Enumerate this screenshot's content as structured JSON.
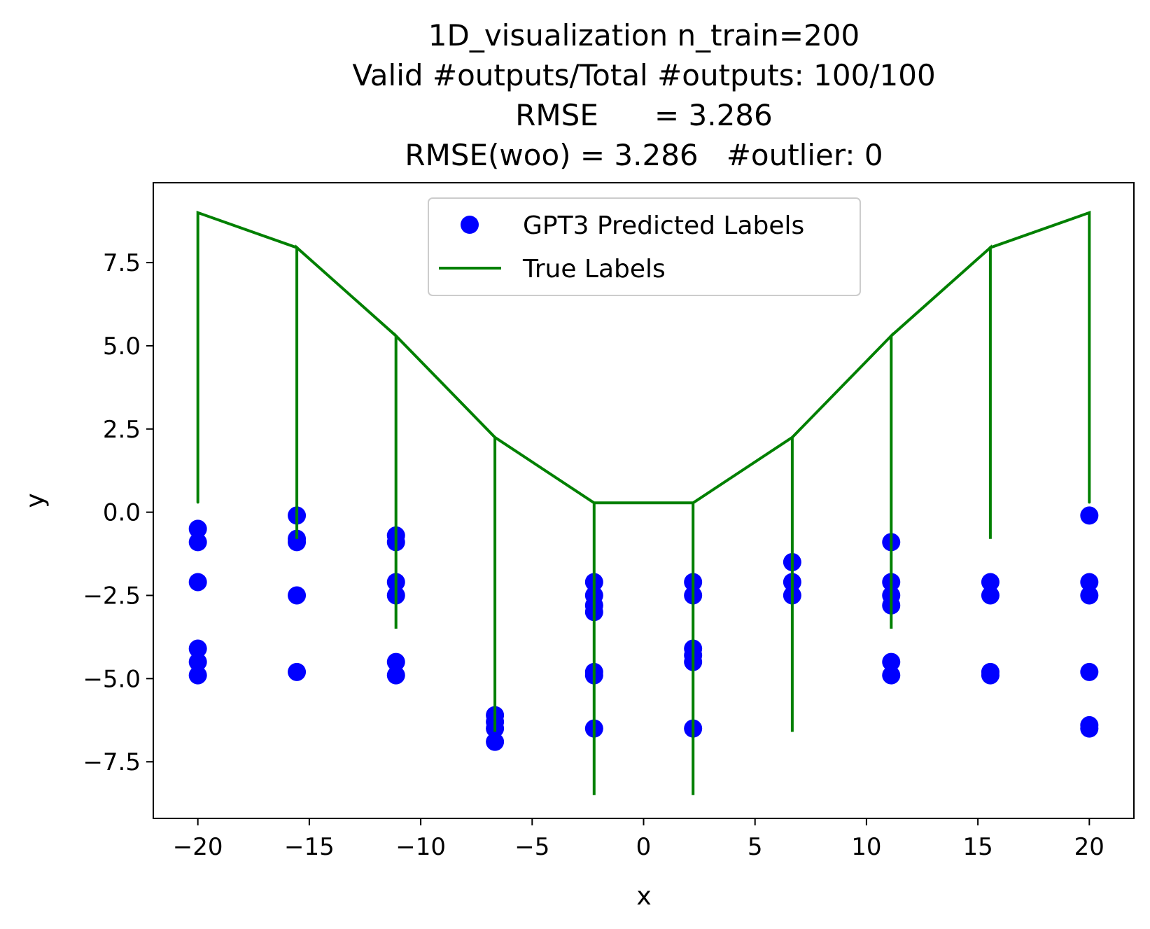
{
  "chart_data": {
    "type": "scatter",
    "title": [
      "1D_visualization  n_train=200",
      "Valid #outputs/Total #outputs: 100/100",
      "RMSE      = 3.286",
      "RMSE(woo) = 3.286   #outlier: 0"
    ],
    "xlabel": "x",
    "ylabel": "y",
    "xlim": [
      -22,
      22
    ],
    "ylim": [
      -9.2,
      9.9
    ],
    "xticks": [
      -20,
      -15,
      -10,
      -5,
      0,
      5,
      10,
      15,
      20
    ],
    "xtick_labels": [
      "−20",
      "−15",
      "−10",
      "−5",
      "0",
      "5",
      "10",
      "15",
      "20"
    ],
    "yticks": [
      7.5,
      5.0,
      2.5,
      0.0,
      -2.5,
      -5.0,
      -7.5
    ],
    "ytick_labels": [
      "7.5",
      "5.0",
      "2.5",
      "0.0",
      "−2.5",
      "−5.0",
      "−7.5"
    ],
    "grid": false,
    "legend": {
      "placement": "upper-center",
      "entries": [
        "GPT3 Predicted Labels",
        "True Labels"
      ]
    },
    "colors": {
      "predicted": "#0000ff",
      "true": "#008000"
    },
    "series": [
      {
        "name": "GPT3 Predicted Labels",
        "kind": "scatter",
        "points": [
          [
            -20,
            -0.5
          ],
          [
            -20,
            -0.9
          ],
          [
            -20,
            -2.1
          ],
          [
            -20,
            -4.1
          ],
          [
            -20,
            -4.5
          ],
          [
            -20,
            -4.9
          ],
          [
            -15.56,
            -0.1
          ],
          [
            -15.56,
            -0.8
          ],
          [
            -15.56,
            -0.9
          ],
          [
            -15.56,
            -2.5
          ],
          [
            -15.56,
            -4.8
          ],
          [
            -11.11,
            -0.7
          ],
          [
            -11.11,
            -0.9
          ],
          [
            -11.11,
            -2.1
          ],
          [
            -11.11,
            -2.5
          ],
          [
            -11.11,
            -4.5
          ],
          [
            -11.11,
            -4.9
          ],
          [
            -6.67,
            -6.1
          ],
          [
            -6.67,
            -6.3
          ],
          [
            -6.67,
            -6.5
          ],
          [
            -6.67,
            -6.9
          ],
          [
            -2.22,
            -2.1
          ],
          [
            -2.22,
            -2.5
          ],
          [
            -2.22,
            -2.8
          ],
          [
            -2.22,
            -3.0
          ],
          [
            -2.22,
            -4.8
          ],
          [
            -2.22,
            -4.9
          ],
          [
            -2.22,
            -6.5
          ],
          [
            2.22,
            -2.1
          ],
          [
            2.22,
            -2.5
          ],
          [
            2.22,
            -4.1
          ],
          [
            2.22,
            -4.3
          ],
          [
            2.22,
            -4.5
          ],
          [
            2.22,
            -6.5
          ],
          [
            6.67,
            -1.5
          ],
          [
            6.67,
            -2.1
          ],
          [
            6.67,
            -2.5
          ],
          [
            11.11,
            -0.9
          ],
          [
            11.11,
            -2.1
          ],
          [
            11.11,
            -2.5
          ],
          [
            11.11,
            -2.8
          ],
          [
            11.11,
            -4.5
          ],
          [
            11.11,
            -4.9
          ],
          [
            15.56,
            -2.1
          ],
          [
            15.56,
            -2.5
          ],
          [
            15.56,
            -4.8
          ],
          [
            15.56,
            -4.9
          ],
          [
            20,
            -0.1
          ],
          [
            20,
            -2.1
          ],
          [
            20,
            -2.5
          ],
          [
            20,
            -4.8
          ],
          [
            20,
            -6.4
          ],
          [
            20,
            -6.5
          ]
        ]
      },
      {
        "name": "True Labels",
        "kind": "line",
        "points": [
          [
            -20,
            0.3
          ],
          [
            -20,
            9.0
          ],
          [
            -15.56,
            7.95
          ],
          [
            -15.56,
            -0.8
          ],
          [
            -15.56,
            7.95
          ],
          [
            -11.11,
            5.3
          ],
          [
            -11.11,
            -3.5
          ],
          [
            -11.11,
            5.3
          ],
          [
            -6.67,
            2.25
          ],
          [
            -6.67,
            -6.6
          ],
          [
            -6.67,
            2.25
          ],
          [
            -2.22,
            0.28
          ],
          [
            -2.22,
            -8.5
          ],
          [
            -2.22,
            0.28
          ],
          [
            2.22,
            0.28
          ],
          [
            2.22,
            -8.5
          ],
          [
            2.22,
            0.28
          ],
          [
            6.67,
            2.25
          ],
          [
            6.67,
            -6.6
          ],
          [
            6.67,
            2.25
          ],
          [
            11.11,
            5.3
          ],
          [
            11.11,
            -3.5
          ],
          [
            11.11,
            5.3
          ],
          [
            15.56,
            7.95
          ],
          [
            15.56,
            -0.8
          ],
          [
            15.56,
            7.95
          ],
          [
            20,
            9.0
          ],
          [
            20,
            0.3
          ]
        ]
      }
    ]
  }
}
